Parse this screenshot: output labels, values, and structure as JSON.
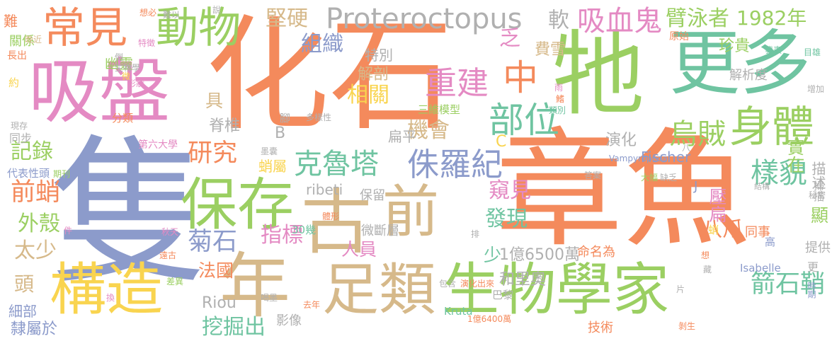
{
  "colors": {
    "orange": "#f48a5c",
    "blue": "#8c9bcb",
    "green": "#9bcf62",
    "teal": "#6fc4a1",
    "pink": "#e48ac3",
    "tan": "#d6b98a",
    "yellow": "#f9d44f",
    "gray": "#b0b0b0"
  },
  "words": [
    {
      "text": "化石",
      "color": "orange"
    },
    {
      "text": "章魚",
      "color": "orange"
    },
    {
      "text": "隻",
      "color": "blue"
    },
    {
      "text": "吸盤",
      "color": "pink"
    },
    {
      "text": "牠",
      "color": "green"
    },
    {
      "text": "更多",
      "color": "teal"
    },
    {
      "text": "古",
      "color": "tan"
    },
    {
      "text": "前",
      "color": "tan"
    },
    {
      "text": "保存",
      "color": "green"
    },
    {
      "text": "生物學家",
      "color": "green"
    },
    {
      "text": "構造",
      "color": "yellow"
    },
    {
      "text": "年",
      "color": "tan"
    },
    {
      "text": "足類",
      "color": "tan"
    },
    {
      "text": "常見",
      "color": "orange"
    },
    {
      "text": "動物",
      "color": "green"
    },
    {
      "text": "Proteroctopus",
      "color": "gray"
    },
    {
      "text": "吸血鬼",
      "color": "pink"
    },
    {
      "text": "中",
      "color": "orange"
    },
    {
      "text": "部位",
      "color": "teal"
    },
    {
      "text": "重建",
      "color": "pink"
    },
    {
      "text": "烏賊",
      "color": "green"
    },
    {
      "text": "身體",
      "color": "green"
    },
    {
      "text": "克魯塔",
      "color": "teal"
    },
    {
      "text": "侏羅紀",
      "color": "blue"
    },
    {
      "text": "研究",
      "color": "orange"
    },
    {
      "text": "臂泳者",
      "color": "green"
    },
    {
      "text": "1982年",
      "color": "green"
    },
    {
      "text": "堅硬",
      "color": "tan"
    },
    {
      "text": "軟",
      "color": "gray"
    },
    {
      "text": "組織",
      "color": "blue"
    },
    {
      "text": "乏",
      "color": "pink"
    },
    {
      "text": "費雪",
      "color": "tan"
    },
    {
      "text": "珍貴",
      "color": "green"
    },
    {
      "text": "相關",
      "color": "yellow"
    },
    {
      "text": "機會",
      "color": "tan"
    },
    {
      "text": "解剖",
      "color": "tan"
    },
    {
      "text": "特別",
      "color": "gray"
    },
    {
      "text": "解析度",
      "color": "gray"
    },
    {
      "text": "三維模型",
      "color": "green"
    },
    {
      "text": "記錄",
      "color": "green"
    },
    {
      "text": "前蛸",
      "color": "orange"
    },
    {
      "text": "外殼",
      "color": "green"
    },
    {
      "text": "太少",
      "color": "tan"
    },
    {
      "text": "頭",
      "color": "tan"
    },
    {
      "text": "具",
      "color": "tan"
    },
    {
      "text": "脊椎",
      "color": "gray"
    },
    {
      "text": "B",
      "color": "gray"
    },
    {
      "text": "窺見",
      "color": "pink"
    },
    {
      "text": "發現",
      "color": "teal"
    },
    {
      "text": "樣貌",
      "color": "teal"
    },
    {
      "text": "實在",
      "color": "green"
    },
    {
      "text": "箭石鞘",
      "color": "teal"
    },
    {
      "text": "壓扁",
      "color": "pink"
    },
    {
      "text": "八爪",
      "color": "orange"
    },
    {
      "text": "演化",
      "color": "gray"
    },
    {
      "text": "Fischer",
      "color": "blue"
    },
    {
      "text": "扁平",
      "color": "gray"
    },
    {
      "text": "描述",
      "color": "gray"
    },
    {
      "text": "顯",
      "color": "green"
    },
    {
      "text": "ribeti",
      "color": "gray"
    },
    {
      "text": "保留",
      "color": "gray"
    },
    {
      "text": "指標",
      "color": "pink"
    },
    {
      "text": "菊石",
      "color": "blue"
    },
    {
      "text": "法國",
      "color": "orange"
    },
    {
      "text": "Riou",
      "color": "gray"
    },
    {
      "text": "挖掘出",
      "color": "teal"
    },
    {
      "text": "細部",
      "color": "blue"
    },
    {
      "text": "隸屬於",
      "color": "blue"
    },
    {
      "text": "代表性頭",
      "color": "blue"
    },
    {
      "text": "人員",
      "color": "pink"
    },
    {
      "text": "少",
      "color": "teal"
    },
    {
      "text": "1億6500萬",
      "color": "gray"
    },
    {
      "text": "和里奧",
      "color": "gray"
    },
    {
      "text": "巴黎",
      "color": "gray"
    },
    {
      "text": "命名為",
      "color": "orange"
    },
    {
      "text": "30幾",
      "color": "teal"
    },
    {
      "text": "微斷層",
      "color": "gray"
    },
    {
      "text": "技術",
      "color": "orange"
    },
    {
      "text": "Isabelle",
      "color": "blue"
    },
    {
      "text": "Kruta",
      "color": "teal"
    },
    {
      "text": "影像",
      "color": "gray"
    },
    {
      "text": "蛸屬",
      "color": "yellow"
    },
    {
      "text": "關係",
      "color": "green"
    },
    {
      "text": "幽靈",
      "color": "green"
    },
    {
      "text": "難",
      "color": "orange"
    },
    {
      "text": "分類",
      "color": "orange"
    },
    {
      "text": "同步",
      "color": "gray"
    },
    {
      "text": "第六大學",
      "color": "pink"
    },
    {
      "text": "Vampyropoda",
      "color": "blue"
    },
    {
      "text": "答案",
      "color": "gray"
    },
    {
      "text": "大幅",
      "color": "green"
    },
    {
      "text": "缺乏",
      "color": "gray"
    },
    {
      "text": "結構",
      "color": "gray"
    },
    {
      "text": "同事",
      "color": "orange"
    },
    {
      "text": "蛸",
      "color": "yellow"
    },
    {
      "text": "J",
      "color": "blue"
    },
    {
      "text": "C",
      "color": "yellow"
    },
    {
      "text": "提供",
      "color": "gray"
    },
    {
      "text": "高",
      "color": "blue"
    },
    {
      "text": "更",
      "color": "gray"
    },
    {
      "text": "時期",
      "color": "blue"
    },
    {
      "text": "增加",
      "color": "gray"
    },
    {
      "text": "掃描",
      "color": "gray"
    },
    {
      "text": "原始",
      "color": "orange"
    },
    {
      "text": "發表",
      "color": "teal"
    },
    {
      "text": "目雄",
      "color": "teal"
    },
    {
      "text": "類別",
      "color": "teal"
    },
    {
      "text": "雨",
      "color": "pink"
    },
    {
      "text": "鰭",
      "color": "orange"
    },
    {
      "text": "晚近",
      "color": "tan"
    },
    {
      "text": "長出",
      "color": "orange"
    },
    {
      "text": "約",
      "color": "yellow"
    },
    {
      "text": "想必",
      "color": "orange"
    },
    {
      "text": "特徵",
      "color": "pink"
    },
    {
      "text": "生物學",
      "color": "gray"
    },
    {
      "text": "形狀",
      "color": "pink"
    },
    {
      "text": "微",
      "color": "yellow"
    },
    {
      "text": "倒",
      "color": "gray"
    },
    {
      "text": "說",
      "color": "gray"
    },
    {
      "text": "難以",
      "color": "gray"
    },
    {
      "text": "腳",
      "color": "gray"
    },
    {
      "text": "多樣性",
      "color": "gray"
    },
    {
      "text": "現存",
      "color": "gray"
    },
    {
      "text": "期刊",
      "color": "green"
    },
    {
      "text": "墨囊",
      "color": "gray"
    },
    {
      "text": "件",
      "color": "pink"
    },
    {
      "text": "秋天",
      "color": "pink"
    },
    {
      "text": "遠古",
      "color": "orange"
    },
    {
      "text": "差異",
      "color": "green"
    },
    {
      "text": "包含",
      "color": "gray"
    },
    {
      "text": "演化出來",
      "color": "orange"
    },
    {
      "text": "喝墨",
      "color": "gray"
    },
    {
      "text": "去年",
      "color": "orange"
    },
    {
      "text": "1億6400萬",
      "color": "orange"
    },
    {
      "text": "換",
      "color": "pink"
    },
    {
      "text": "片",
      "color": "gray"
    },
    {
      "text": "剝生",
      "color": "orange"
    },
    {
      "text": "想",
      "color": "orange"
    },
    {
      "text": "藏",
      "color": "gray"
    },
    {
      "text": "秘密",
      "color": "gray"
    },
    {
      "text": "八",
      "color": "gray"
    },
    {
      "text": "排",
      "color": "gray"
    },
    {
      "text": "體形",
      "color": "orange"
    }
  ]
}
